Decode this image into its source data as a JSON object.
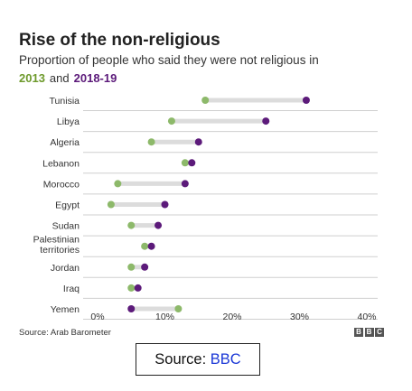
{
  "title": "Rise of the non-religious",
  "subtitle": "Proportion of people who said they were not religious in",
  "legend": {
    "y2013": "2013",
    "and": "and",
    "y2018": "2018-19"
  },
  "source": "Source: Arab Barometer",
  "logo": [
    "B",
    "B",
    "C"
  ],
  "credit": {
    "label": "Source: ",
    "link": "BBC"
  },
  "colors": {
    "y2013": "#8db96a",
    "y2018": "#5c1a7a",
    "connector": "#dcdcdc",
    "grid": "#cfcfcf"
  },
  "chart_data": {
    "type": "dot",
    "categories": [
      "Tunisia",
      "Libya",
      "Algeria",
      "Lebanon",
      "Morocco",
      "Egypt",
      "Sudan",
      "Palestinian territories",
      "Jordan",
      "Iraq",
      "Yemen"
    ],
    "series": [
      {
        "name": "2013",
        "values": [
          16,
          11,
          8,
          13,
          3,
          2,
          5,
          7,
          5,
          5,
          12
        ]
      },
      {
        "name": "2018-19",
        "values": [
          31,
          25,
          15,
          14,
          13,
          10,
          9,
          8,
          7,
          6,
          5
        ]
      }
    ],
    "xticks": [
      "0%",
      "10%",
      "20%",
      "30%",
      "40%"
    ],
    "xlim": [
      0,
      40
    ],
    "grid": true
  }
}
